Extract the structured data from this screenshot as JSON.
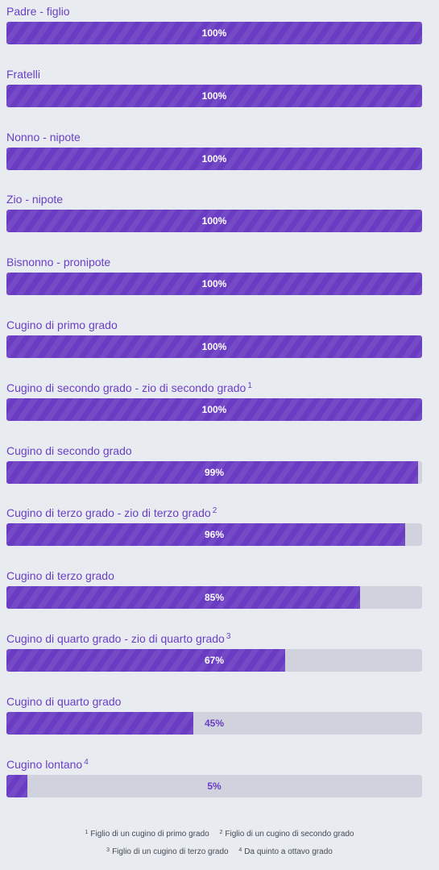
{
  "colors": {
    "bar_fill": "#6a3cc3",
    "bar_track": "#d0d3de",
    "label": "#6a3fc7",
    "background": "#e8ebf0"
  },
  "rows": [
    {
      "label": "Padre - figlio",
      "note": "",
      "percent": 100,
      "value_label": "100%"
    },
    {
      "label": "Fratelli",
      "note": "",
      "percent": 100,
      "value_label": "100%"
    },
    {
      "label": "Nonno - nipote",
      "note": "",
      "percent": 100,
      "value_label": "100%"
    },
    {
      "label": "Zio - nipote",
      "note": "",
      "percent": 100,
      "value_label": "100%"
    },
    {
      "label": "Bisnonno - pronipote",
      "note": "",
      "percent": 100,
      "value_label": "100%"
    },
    {
      "label": "Cugino di primo grado",
      "note": "",
      "percent": 100,
      "value_label": "100%"
    },
    {
      "label": "Cugino di secondo grado - zio di secondo grado",
      "note": "1",
      "percent": 100,
      "value_label": "100%"
    },
    {
      "label": "Cugino di secondo grado",
      "note": "",
      "percent": 99,
      "value_label": "99%"
    },
    {
      "label": "Cugino di terzo grado - zio di terzo grado",
      "note": "2",
      "percent": 96,
      "value_label": "96%"
    },
    {
      "label": "Cugino di terzo grado",
      "note": "",
      "percent": 85,
      "value_label": "85%"
    },
    {
      "label": "Cugino di quarto grado - zio di quarto grado",
      "note": "3",
      "percent": 67,
      "value_label": "67%"
    },
    {
      "label": "Cugino di quarto grado",
      "note": "",
      "percent": 45,
      "value_label": "45%"
    },
    {
      "label": "Cugino lontano",
      "note": "4",
      "percent": 5,
      "value_label": "5%"
    }
  ],
  "footnotes": [
    {
      "mark": "1",
      "text": "Figlio di un cugino di primo grado"
    },
    {
      "mark": "2",
      "text": "Figlio di un cugino di secondo grado"
    },
    {
      "mark": "3",
      "text": "Figlio di un cugino di terzo grado"
    },
    {
      "mark": "4",
      "text": "Da quinto a ottavo grado"
    }
  ]
}
